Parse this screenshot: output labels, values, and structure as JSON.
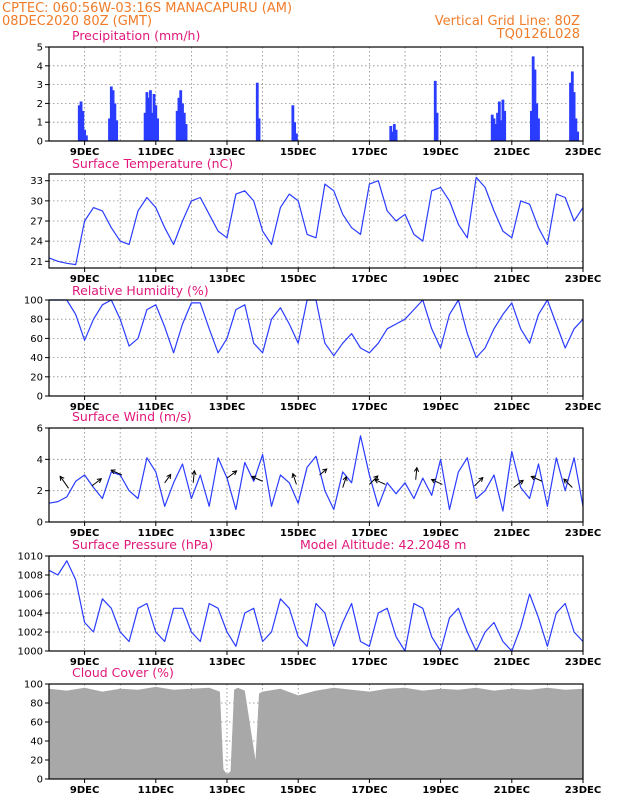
{
  "header": {
    "line1": "CPTEC:   060:56W-03:16S   MANACAPURU (AM)",
    "line2": "08DEC2020 80Z (GMT)",
    "right1": "Vertical Grid Line: 80Z",
    "right2": "TQ0126L028"
  },
  "colors": {
    "line": "#2a3cff",
    "text_title": "#e0187a",
    "header": "#f07c2a",
    "cloud": "#a8a8a8",
    "arrow": "#000000"
  },
  "chart_data": [
    {
      "type": "bar",
      "title": "Precipitation (mm/h)",
      "ylim": [
        0,
        5
      ],
      "yticks": [
        "0",
        "1",
        "2",
        "3",
        "4",
        "5"
      ],
      "xticks": [
        "9DEC",
        "11DEC",
        "13DEC",
        "15DEC",
        "17DEC",
        "19DEC",
        "21DEC",
        "23DEC"
      ],
      "x_range": [
        8.0,
        23.0
      ],
      "events": [
        [
          8.85,
          1.9
        ],
        [
          8.9,
          2.1
        ],
        [
          8.95,
          1.6
        ],
        [
          9.0,
          0.6
        ],
        [
          9.05,
          0.3
        ],
        [
          9.7,
          1.2
        ],
        [
          9.75,
          2.9
        ],
        [
          9.8,
          2.7
        ],
        [
          9.85,
          2.0
        ],
        [
          9.9,
          1.1
        ],
        [
          10.7,
          1.5
        ],
        [
          10.75,
          2.6
        ],
        [
          10.8,
          2.3
        ],
        [
          10.85,
          2.7
        ],
        [
          10.9,
          1.5
        ],
        [
          10.95,
          2.5
        ],
        [
          11.0,
          1.9
        ],
        [
          11.05,
          1.2
        ],
        [
          11.6,
          1.6
        ],
        [
          11.65,
          2.3
        ],
        [
          11.7,
          2.7
        ],
        [
          11.75,
          2.0
        ],
        [
          11.8,
          1.5
        ],
        [
          11.85,
          0.9
        ],
        [
          13.85,
          3.1
        ],
        [
          13.9,
          1.2
        ],
        [
          14.85,
          1.9
        ],
        [
          14.9,
          1.0
        ],
        [
          14.95,
          0.4
        ],
        [
          17.6,
          0.8
        ],
        [
          17.65,
          0.5
        ],
        [
          17.7,
          0.9
        ],
        [
          17.75,
          0.6
        ],
        [
          18.85,
          3.2
        ],
        [
          18.9,
          1.5
        ],
        [
          20.45,
          1.4
        ],
        [
          20.5,
          1.2
        ],
        [
          20.55,
          0.9
        ],
        [
          20.6,
          1.5
        ],
        [
          20.65,
          2.1
        ],
        [
          20.7,
          1.1
        ],
        [
          20.75,
          2.2
        ],
        [
          20.8,
          1.6
        ],
        [
          21.55,
          1.6
        ],
        [
          21.6,
          4.5
        ],
        [
          21.65,
          3.8
        ],
        [
          21.7,
          2.0
        ],
        [
          21.75,
          1.2
        ],
        [
          22.65,
          3.1
        ],
        [
          22.7,
          3.7
        ],
        [
          22.75,
          2.6
        ],
        [
          22.8,
          1.2
        ],
        [
          22.85,
          0.5
        ]
      ]
    },
    {
      "type": "line",
      "title": "Surface Temperature (nC)",
      "ylim": [
        20,
        34
      ],
      "yticks": [
        "21",
        "24",
        "27",
        "30",
        "33"
      ],
      "xticks": [
        "9DEC",
        "11DEC",
        "13DEC",
        "15DEC",
        "17DEC",
        "19DEC",
        "21DEC",
        "23DEC"
      ],
      "x": [
        8.0,
        8.25,
        8.5,
        8.75,
        9.0,
        9.25,
        9.5,
        9.75,
        10.0,
        10.25,
        10.5,
        10.75,
        11.0,
        11.25,
        11.5,
        11.75,
        12.0,
        12.25,
        12.5,
        12.75,
        13.0,
        13.25,
        13.5,
        13.75,
        14.0,
        14.25,
        14.5,
        14.75,
        15.0,
        15.25,
        15.5,
        15.75,
        16.0,
        16.25,
        16.5,
        16.75,
        17.0,
        17.25,
        17.5,
        17.75,
        18.0,
        18.25,
        18.5,
        18.75,
        19.0,
        19.25,
        19.5,
        19.75,
        20.0,
        20.25,
        20.5,
        20.75,
        21.0,
        21.25,
        21.5,
        21.75,
        22.0,
        22.25,
        22.5,
        22.75,
        23.0
      ],
      "y": [
        21.5,
        21,
        20.7,
        20.5,
        27,
        29,
        28.5,
        26,
        24,
        23.5,
        28.5,
        30.5,
        29,
        26,
        23.5,
        27,
        30,
        30.5,
        28,
        25.5,
        24.5,
        31,
        31.5,
        30,
        25.5,
        23.5,
        29,
        31,
        30,
        25,
        24.5,
        32.5,
        31.5,
        28,
        26,
        25,
        32.5,
        33,
        28.5,
        27,
        28,
        25,
        24,
        31.5,
        32,
        30,
        26.5,
        24.5,
        33.5,
        32,
        28.5,
        25.5,
        24.5,
        30,
        29.5,
        26,
        23.5,
        31,
        30.5,
        27,
        29
      ]
    },
    {
      "type": "line",
      "title": "Relative Humidity (%)",
      "ylim": [
        0,
        100
      ],
      "yticks": [
        "0",
        "20",
        "40",
        "60",
        "80",
        "100"
      ],
      "xticks": [
        "9DEC",
        "11DEC",
        "13DEC",
        "15DEC",
        "17DEC",
        "19DEC",
        "21DEC",
        "23DEC"
      ],
      "x": [
        8.0,
        8.25,
        8.5,
        8.75,
        9.0,
        9.25,
        9.5,
        9.75,
        10.0,
        10.25,
        10.5,
        10.75,
        11.0,
        11.25,
        11.5,
        11.75,
        12.0,
        12.25,
        12.5,
        12.75,
        13.0,
        13.25,
        13.5,
        13.75,
        14.0,
        14.25,
        14.5,
        14.75,
        15.0,
        15.25,
        15.5,
        15.75,
        16.0,
        16.25,
        16.5,
        16.75,
        17.0,
        17.25,
        17.5,
        17.75,
        18.0,
        18.25,
        18.5,
        18.75,
        19.0,
        19.25,
        19.5,
        19.75,
        20.0,
        20.25,
        20.5,
        20.75,
        21.0,
        21.25,
        21.5,
        21.75,
        22.0,
        22.25,
        22.5,
        22.75,
        23.0
      ],
      "y": [
        100,
        100,
        100,
        85,
        58,
        80,
        95,
        100,
        80,
        52,
        60,
        90,
        95,
        72,
        45,
        75,
        97,
        97,
        70,
        45,
        60,
        90,
        95,
        55,
        45,
        80,
        92,
        75,
        55,
        100,
        100,
        55,
        42,
        55,
        65,
        50,
        45,
        55,
        70,
        75,
        80,
        90,
        100,
        70,
        50,
        85,
        100,
        65,
        40,
        50,
        70,
        85,
        97,
        70,
        55,
        85,
        100,
        75,
        50,
        70,
        80
      ]
    },
    {
      "type": "line",
      "title": "Surface Wind (m/s)",
      "ylim": [
        0,
        6
      ],
      "yticks": [
        "0",
        "2",
        "4",
        "6"
      ],
      "xticks": [
        "9DEC",
        "11DEC",
        "13DEC",
        "15DEC",
        "17DEC",
        "19DEC",
        "21DEC",
        "23DEC"
      ],
      "x": [
        8.0,
        8.25,
        8.5,
        8.75,
        9.0,
        9.25,
        9.5,
        9.75,
        10.0,
        10.25,
        10.5,
        10.75,
        11.0,
        11.25,
        11.5,
        11.75,
        12.0,
        12.25,
        12.5,
        12.75,
        13.0,
        13.25,
        13.5,
        13.75,
        14.0,
        14.25,
        14.5,
        14.75,
        15.0,
        15.25,
        15.5,
        15.75,
        16.0,
        16.25,
        16.5,
        16.75,
        17.0,
        17.25,
        17.5,
        17.75,
        18.0,
        18.25,
        18.5,
        18.75,
        19.0,
        19.25,
        19.5,
        19.75,
        20.0,
        20.25,
        20.5,
        20.75,
        21.0,
        21.25,
        21.5,
        21.75,
        22.0,
        22.25,
        22.5,
        22.75,
        23.0
      ],
      "y": [
        1.2,
        1.3,
        1.6,
        2.6,
        3.0,
        2.2,
        1.5,
        3.2,
        3.0,
        2.0,
        1.5,
        4.1,
        3.2,
        1.0,
        2.5,
        3.7,
        1.5,
        3.0,
        1.0,
        4.1,
        2.8,
        0.8,
        3.8,
        2.6,
        4.3,
        1.0,
        3.0,
        2.5,
        1.2,
        3.5,
        4.2,
        2.0,
        0.8,
        3.2,
        2.5,
        5.5,
        3.0,
        1.0,
        2.5,
        1.8,
        2.5,
        1.5,
        2.8,
        1.7,
        4.0,
        0.8,
        3.2,
        4.1,
        1.5,
        2.0,
        3.0,
        0.7,
        4.5,
        2.2,
        1.5,
        3.7,
        1.0,
        4.1,
        2.0,
        4.1,
        1.0
      ],
      "arrows": [
        [
          8.55,
          2.15,
          -0.7,
          -1.0
        ],
        [
          9.2,
          2.3,
          0.8,
          -0.6
        ],
        [
          10.05,
          3.0,
          -0.9,
          -0.4
        ],
        [
          11.25,
          2.5,
          0.5,
          -0.7
        ],
        [
          12.05,
          2.5,
          0.1,
          -1.0
        ],
        [
          13.0,
          2.8,
          0.8,
          -0.6
        ],
        [
          14.0,
          2.6,
          -0.9,
          -0.4
        ],
        [
          14.95,
          2.4,
          -0.3,
          -0.9
        ],
        [
          15.6,
          3.0,
          0.6,
          -0.5
        ],
        [
          16.25,
          2.2,
          0.3,
          -0.9
        ],
        [
          17.0,
          2.4,
          0.7,
          -0.7
        ],
        [
          17.45,
          2.4,
          -0.9,
          -0.4
        ],
        [
          18.3,
          2.7,
          0.1,
          -1.0
        ],
        [
          19.05,
          2.4,
          -0.9,
          -0.4
        ],
        [
          19.95,
          2.3,
          0.7,
          -0.7
        ],
        [
          21.05,
          2.2,
          0.8,
          -0.6
        ],
        [
          21.85,
          2.6,
          -0.9,
          -0.4
        ],
        [
          22.7,
          2.2,
          -0.7,
          -0.7
        ]
      ]
    },
    {
      "type": "line",
      "title": "Surface Pressure (hPa)",
      "annotation": "Model Altitude: 42.2048 m",
      "ylim": [
        1000,
        1010
      ],
      "yticks": [
        "1000",
        "1002",
        "1004",
        "1006",
        "1008",
        "1010"
      ],
      "xticks": [
        "9DEC",
        "11DEC",
        "13DEC",
        "15DEC",
        "17DEC",
        "19DEC",
        "21DEC",
        "23DEC"
      ],
      "x": [
        8.0,
        8.25,
        8.5,
        8.75,
        9.0,
        9.25,
        9.5,
        9.75,
        10.0,
        10.25,
        10.5,
        10.75,
        11.0,
        11.25,
        11.5,
        11.75,
        12.0,
        12.25,
        12.5,
        12.75,
        13.0,
        13.25,
        13.5,
        13.75,
        14.0,
        14.25,
        14.5,
        14.75,
        15.0,
        15.25,
        15.5,
        15.75,
        16.0,
        16.25,
        16.5,
        16.75,
        17.0,
        17.25,
        17.5,
        17.75,
        18.0,
        18.25,
        18.5,
        18.75,
        19.0,
        19.25,
        19.5,
        19.75,
        20.0,
        20.25,
        20.5,
        20.75,
        21.0,
        21.25,
        21.5,
        21.75,
        22.0,
        22.25,
        22.5,
        22.75,
        23.0
      ],
      "y": [
        1008.5,
        1008,
        1009.5,
        1007.5,
        1003,
        1002,
        1005.5,
        1004.5,
        1002,
        1001,
        1004.5,
        1005,
        1002,
        1001,
        1004.5,
        1004.5,
        1002,
        1001,
        1005,
        1004.5,
        1002,
        1000.5,
        1004,
        1004.5,
        1001,
        1002,
        1005.5,
        1004.5,
        1001.5,
        1000.5,
        1005,
        1004,
        1000.5,
        1003,
        1005,
        1001,
        1000.5,
        1004,
        1004.5,
        1001.5,
        1000,
        1005,
        1004.5,
        1001.5,
        1000,
        1003.5,
        1004.5,
        1002,
        1000,
        1002,
        1003,
        1001,
        1000,
        1002.5,
        1006,
        1003.5,
        1000.5,
        1004,
        1005,
        1002,
        1001
      ]
    },
    {
      "type": "area",
      "title": "Cloud Cover (%)",
      "ylim": [
        0,
        100
      ],
      "yticks": [
        "0",
        "20",
        "40",
        "60",
        "80",
        "100"
      ],
      "xticks": [
        "9DEC",
        "11DEC",
        "13DEC",
        "15DEC",
        "17DEC",
        "19DEC",
        "21DEC",
        "23DEC"
      ],
      "x": [
        8.0,
        8.5,
        9.0,
        9.5,
        10.0,
        10.5,
        11.0,
        11.5,
        12.0,
        12.5,
        12.8,
        12.9,
        13.0,
        13.1,
        13.2,
        13.3,
        13.5,
        13.8,
        13.9,
        14.0,
        14.5,
        15.0,
        15.5,
        16.0,
        16.5,
        17.0,
        17.5,
        18.0,
        18.5,
        19.0,
        19.5,
        20.0,
        20.5,
        21.0,
        21.5,
        22.0,
        22.5,
        23.0
      ],
      "y": [
        95,
        93,
        96,
        92,
        95,
        94,
        97,
        94,
        95,
        96,
        92,
        10,
        5,
        8,
        94,
        96,
        93,
        20,
        90,
        92,
        95,
        88,
        93,
        96,
        94,
        92,
        95,
        96,
        93,
        95,
        94,
        96,
        93,
        95,
        94,
        96,
        94,
        95
      ]
    }
  ]
}
